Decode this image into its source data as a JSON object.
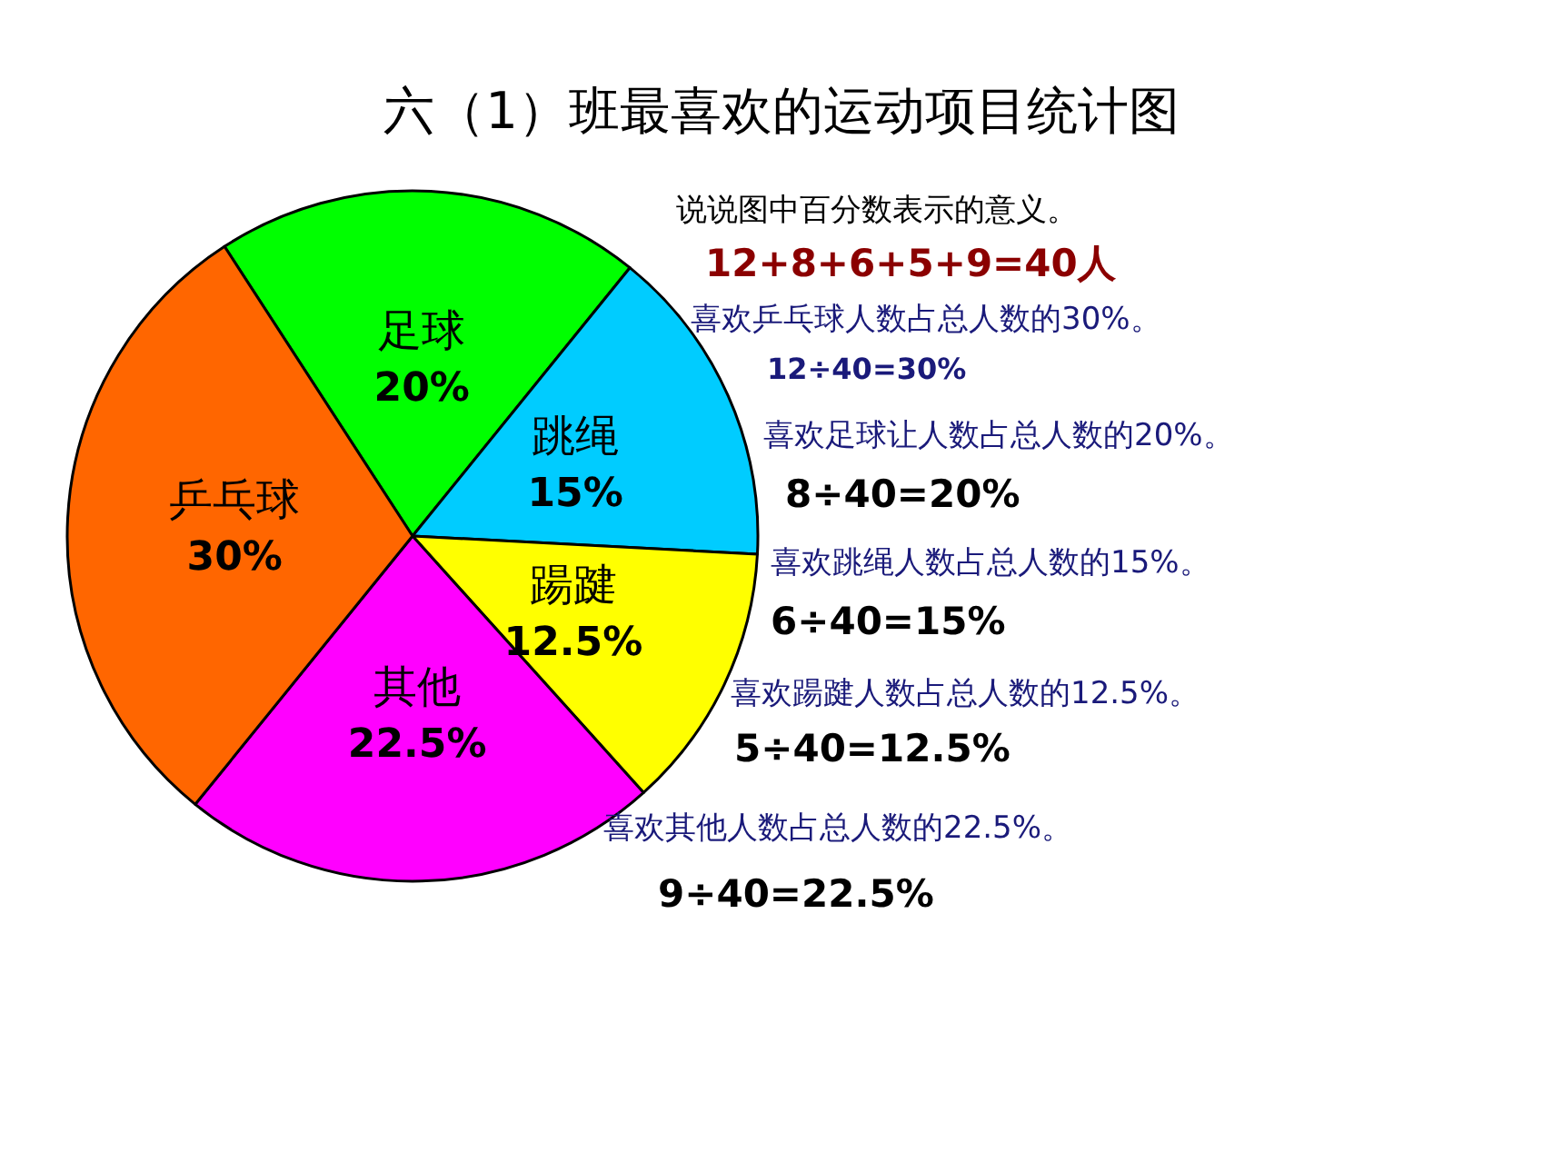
{
  "chart_data": {
    "type": "pie",
    "title": "六（1）班最喜欢的运动项目统计图",
    "categories": [
      "足球",
      "跳绳",
      "踼踺",
      "其他",
      "乒乓球"
    ],
    "values": [
      20,
      15,
      12.5,
      22.5,
      30
    ],
    "colors": [
      "#00ff00",
      "#00ccff",
      "#ffff00",
      "#ff00ff",
      "#ff6600"
    ],
    "value_labels": [
      "20%",
      "15%",
      "12.5%",
      "22.5%",
      "30%"
    ],
    "annotations": [
      "说说图中百分数表示的意义。",
      "12+8+6+5+9=40人",
      "喜欢乒乓球人数占总人数的30%。",
      "12÷40=30%",
      "喜欢足球让人数占总人数的20%。",
      "8÷40=20%",
      "喜欢跳绳人数占总人数的15%。",
      "6÷40=15%",
      "喜欢踼踺人数占总人数的12.5%。",
      "5÷40=12.5%",
      "喜欢其他人数占总人数的22.5%。",
      "9÷40=22.5%"
    ]
  }
}
